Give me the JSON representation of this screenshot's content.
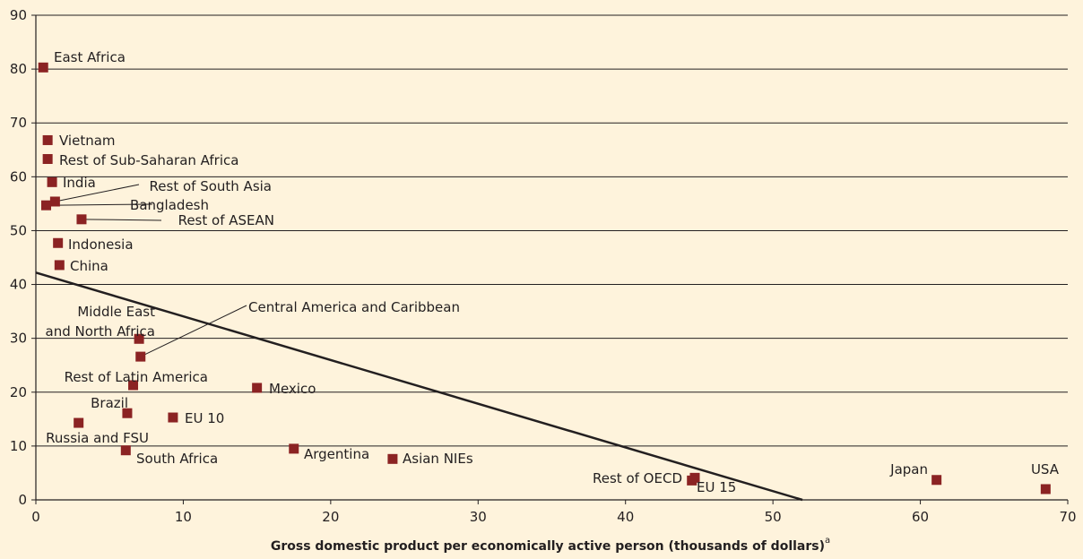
{
  "chart_data": {
    "type": "scatter",
    "xlabel": "Gross domestic product per economically active person (thousands of dollars)",
    "xlabel_sup": "a",
    "ylabel": "",
    "xlim": [
      0,
      70
    ],
    "ylim": [
      0,
      90
    ],
    "xticks": [
      "0",
      "10",
      "20",
      "30",
      "40",
      "50",
      "60",
      "70"
    ],
    "yticks": [
      "0",
      "10",
      "20",
      "30",
      "40",
      "50",
      "60",
      "70",
      "80",
      "90"
    ],
    "grid": "horizontal",
    "marker_color": "#8b2323",
    "line_color": "#231f20",
    "trend_line": {
      "x": [
        0,
        52
      ],
      "y": [
        42.2,
        0
      ]
    },
    "points": [
      {
        "label": "East Africa",
        "x": 0.5,
        "y": 80.3
      },
      {
        "label": "Vietnam",
        "x": 0.8,
        "y": 66.8
      },
      {
        "label": "Rest of Sub-Saharan Africa",
        "x": 0.8,
        "y": 63.3
      },
      {
        "label": "India",
        "x": 1.1,
        "y": 59.0
      },
      {
        "label": "Rest of South Asia",
        "x": 1.3,
        "y": 55.4
      },
      {
        "label": "Bangladesh",
        "x": 0.7,
        "y": 54.7
      },
      {
        "label": "Rest of ASEAN",
        "x": 3.1,
        "y": 52.1
      },
      {
        "label": "Indonesia",
        "x": 1.5,
        "y": 47.7
      },
      {
        "label": "China",
        "x": 1.6,
        "y": 43.6
      },
      {
        "label": "Middle East and North Africa",
        "x": 7.0,
        "y": 29.9
      },
      {
        "label": "Central America and Caribbean",
        "x": 7.1,
        "y": 26.6
      },
      {
        "label": "Rest of Latin America",
        "x": 6.6,
        "y": 21.3
      },
      {
        "label": "Mexico",
        "x": 15.0,
        "y": 20.8
      },
      {
        "label": "Brazil",
        "x": 6.2,
        "y": 16.1
      },
      {
        "label": "EU 10",
        "x": 9.3,
        "y": 15.3
      },
      {
        "label": "Russia and FSU",
        "x": 2.9,
        "y": 14.3
      },
      {
        "label": "South Africa",
        "x": 6.1,
        "y": 9.2
      },
      {
        "label": "Argentina",
        "x": 17.5,
        "y": 9.5
      },
      {
        "label": "Asian NIEs",
        "x": 24.2,
        "y": 7.6
      },
      {
        "label": "Rest of OECD",
        "x": 44.7,
        "y": 4.1
      },
      {
        "label": "EU 15",
        "x": 44.5,
        "y": 3.6
      },
      {
        "label": "Japan",
        "x": 61.1,
        "y": 3.7
      },
      {
        "label": "USA",
        "x": 68.5,
        "y": 2.0
      }
    ]
  }
}
